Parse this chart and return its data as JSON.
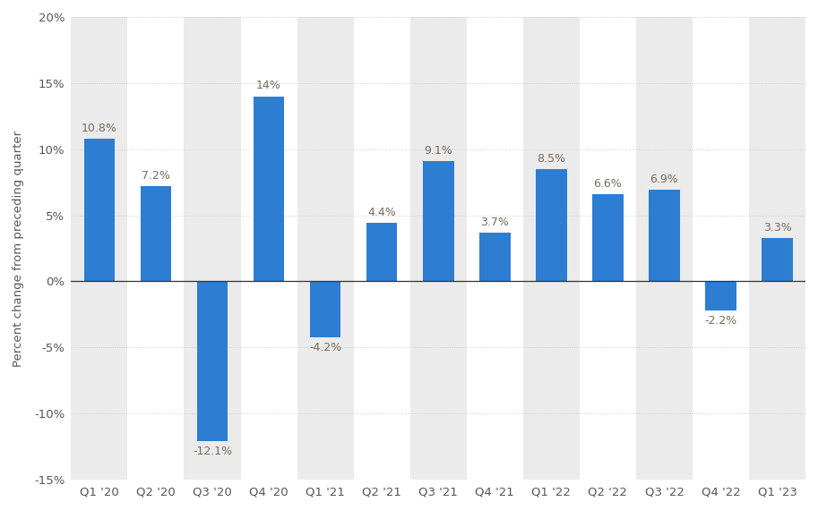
{
  "categories": [
    "Q1 '20",
    "Q2 '20",
    "Q3 '20",
    "Q4 '20",
    "Q1 '21",
    "Q2 '21",
    "Q3 '21",
    "Q4 '21",
    "Q1 '22",
    "Q2 '22",
    "Q3 '22",
    "Q4 '22",
    "Q1 '23"
  ],
  "values": [
    10.8,
    7.2,
    -12.1,
    14.0,
    -4.2,
    4.4,
    9.1,
    3.7,
    8.5,
    6.6,
    6.9,
    -2.2,
    3.3
  ],
  "value_labels": [
    "10.8%",
    "7.2%",
    "-12.1%",
    "14%",
    "-4.2%",
    "4.4%",
    "9.1%",
    "3.7%",
    "8.5%",
    "6.6%",
    "6.9%",
    "-2.2%",
    "3.3%"
  ],
  "bar_color": "#2d7dd2",
  "label_color": "#7a6a5a",
  "background_color": "#ffffff",
  "plot_background_color": "#ffffff",
  "col_band_color": "#ebebeb",
  "ylabel": "Percent change from preceding quarter",
  "ylim": [
    -15,
    20
  ],
  "yticks": [
    -15,
    -10,
    -5,
    0,
    5,
    10,
    15,
    20
  ],
  "ytick_labels": [
    "-15%",
    "-10%",
    "-5%",
    "0%",
    "5%",
    "10%",
    "15%",
    "20%"
  ],
  "tick_fontsize": 9.5,
  "bar_label_fontsize": 9.0,
  "bar_width": 0.55
}
